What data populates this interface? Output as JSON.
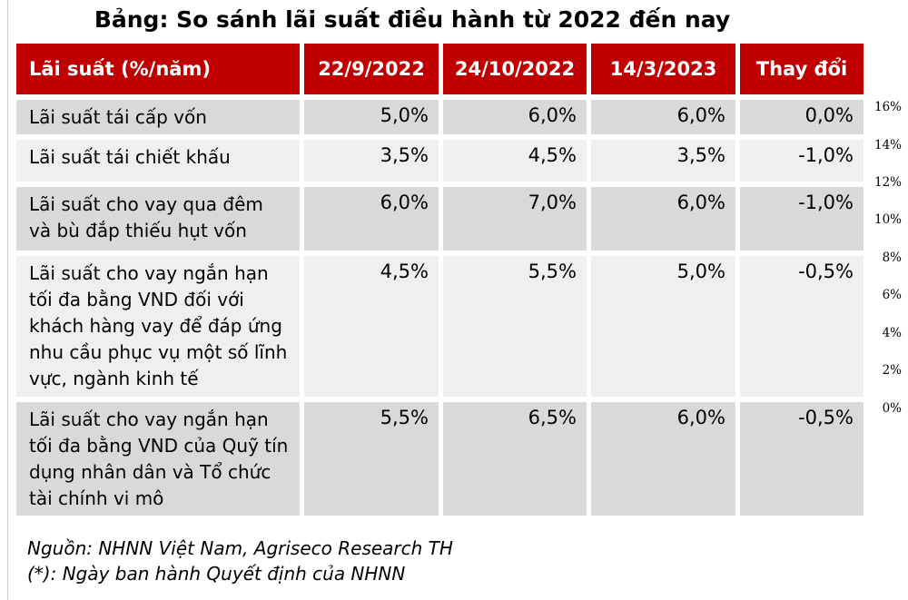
{
  "title": "Bảng: So sánh lãi suất điều hành từ 2022 đến nay",
  "table": {
    "headers": [
      "Lãi suất (%/năm)",
      "22/9/2022",
      "24/10/2022",
      "14/3/2023",
      "Thay đổi"
    ],
    "rows": [
      {
        "label": "Lãi suất tái cấp vốn",
        "values": [
          "5,0%",
          "6,0%",
          "6,0%",
          "0,0%"
        ]
      },
      {
        "label": "Lãi suất tái chiết khấu",
        "values": [
          "3,5%",
          "4,5%",
          "3,5%",
          "-1,0%"
        ]
      },
      {
        "label": "Lãi suất cho vay qua đêm và bù đắp thiếu hụt vốn",
        "values": [
          "6,0%",
          "7,0%",
          "6,0%",
          "-1,0%"
        ]
      },
      {
        "label": "Lãi suất cho vay ngắn hạn tối đa bằng VND đối với khách hàng vay để đáp ứng nhu cầu phục vụ một số lĩnh vực, ngành kinh tế",
        "values": [
          "4,5%",
          "5,5%",
          "5,0%",
          "-0,5%"
        ]
      },
      {
        "label": "Lãi suất cho vay ngắn hạn tối đa bằng VND của Quỹ tín dụng nhân dân và Tổ chức tài chính vi mô",
        "values": [
          "5,5%",
          "6,5%",
          "6,0%",
          "-0,5%"
        ]
      }
    ]
  },
  "footer": {
    "source": "Nguồn: NHNN Việt Nam, Agriseco Research TH",
    "note": "(*): Ngày ban hành Quyết định của NHNN"
  },
  "side_axis": {
    "labels": [
      "16%",
      "14%",
      "12%",
      "10%",
      "8%",
      "6%",
      "4%",
      "2%",
      "0%"
    ]
  },
  "colors": {
    "header_bg": "#C00000",
    "row_dark": "#D9D9D9",
    "row_light": "#EFEFEF",
    "header_text": "#FFFFFF",
    "text": "#000000"
  }
}
